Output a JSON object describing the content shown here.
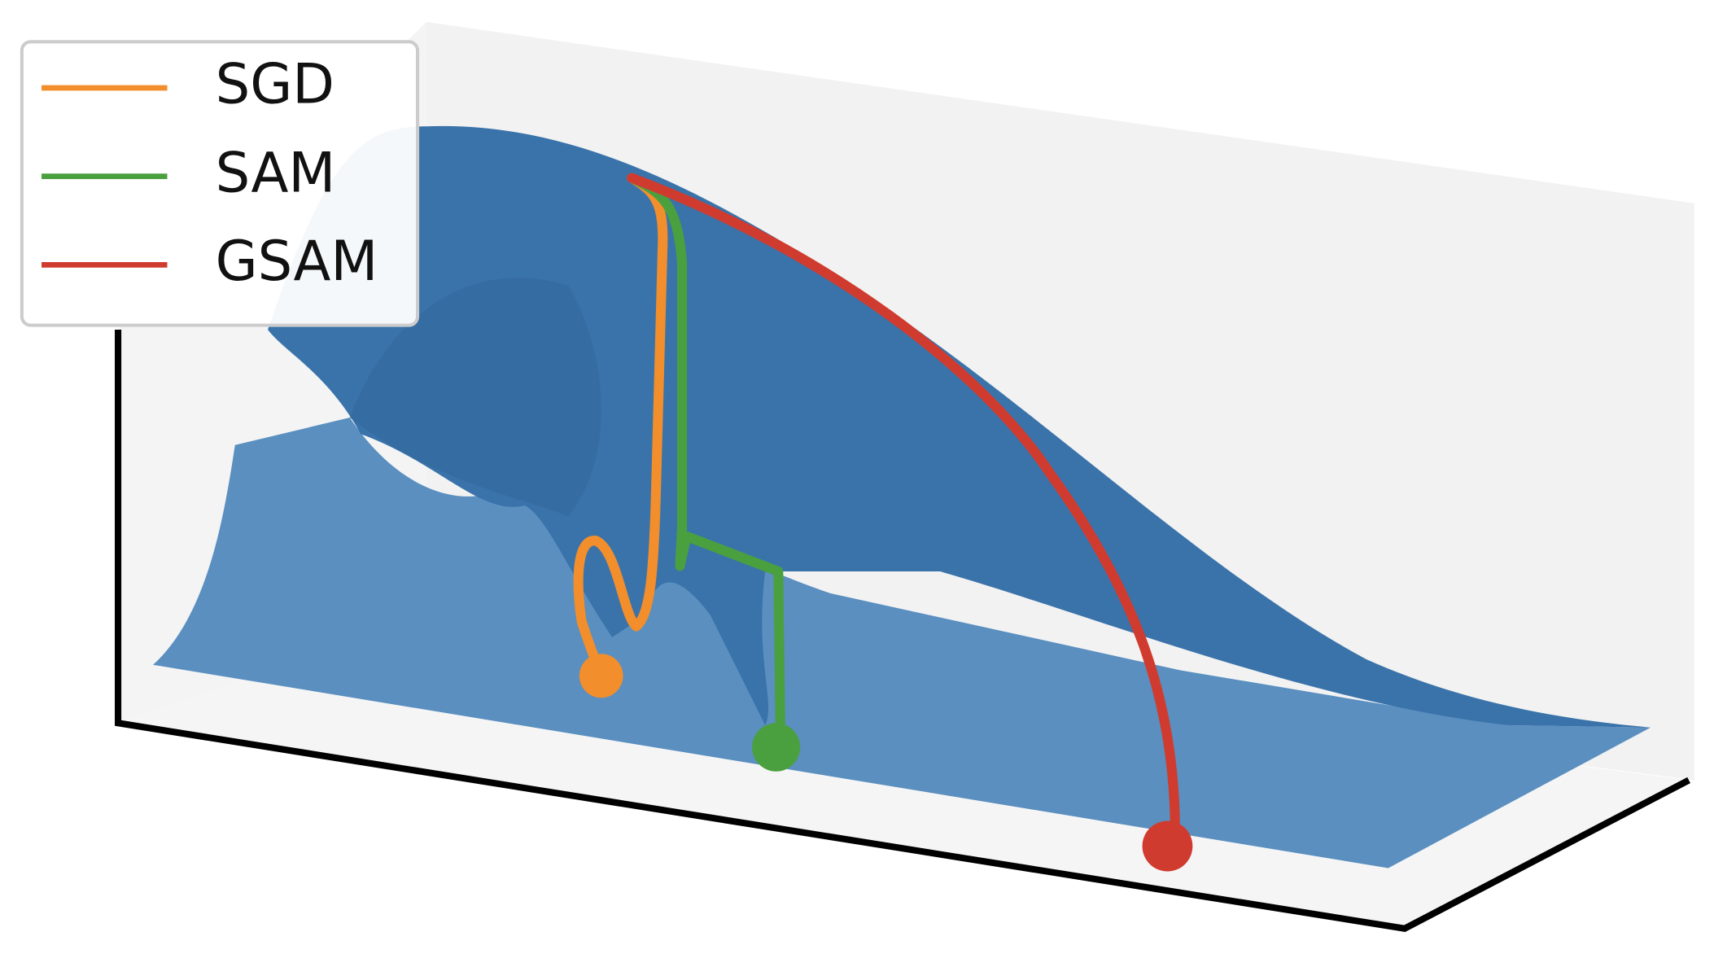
{
  "chart_data": {
    "type": "surface3d",
    "series": [
      {
        "name": "SGD",
        "color": "#f28e2b"
      },
      {
        "name": "SAM",
        "color": "#4aa03f"
      },
      {
        "name": "GSAM",
        "color": "#d03b2f"
      }
    ]
  }
}
